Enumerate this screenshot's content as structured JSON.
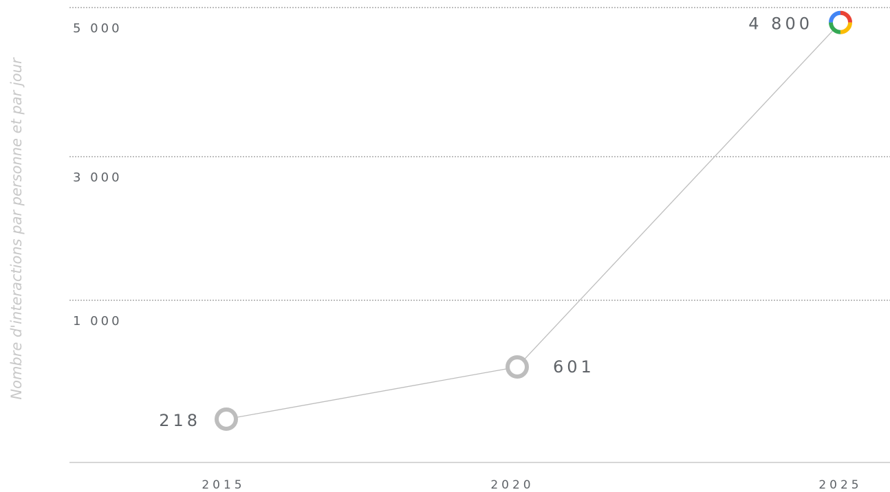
{
  "chart_data": {
    "type": "line",
    "ylabel": "Nombre d'interactions par personne et par jour",
    "x": [
      "2015",
      "2020",
      "2025"
    ],
    "series": [
      {
        "values": [
          218,
          601,
          4800
        ],
        "value_labels": [
          "218",
          "601",
          "4 800"
        ]
      }
    ],
    "y_ticks": [
      {
        "value": 1000,
        "label": "1 000"
      },
      {
        "value": 3000,
        "label": "3 000"
      },
      {
        "value": 5000,
        "label": "5 000"
      }
    ],
    "grid": "dotted horizontal",
    "colors": {
      "line": "#bdbdbd",
      "marker": "#bdbdbd",
      "grid": "#a8a8a8",
      "axis": "#bdbdbd",
      "text": "#5f6368",
      "ylabel": "#c8c8c8",
      "highlight_ring": [
        "#4285F4",
        "#EA4335",
        "#FBBC05",
        "#34A853"
      ]
    }
  }
}
